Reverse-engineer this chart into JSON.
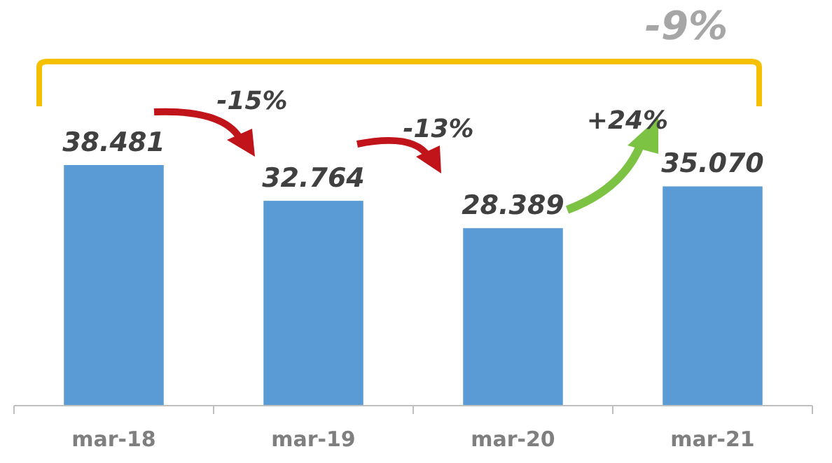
{
  "chart_data": {
    "type": "bar",
    "categories": [
      "mar-18",
      "mar-19",
      "mar-20",
      "mar-21"
    ],
    "values": [
      38.481,
      32.764,
      28.389,
      35.07
    ],
    "value_labels": [
      "38.481",
      "32.764",
      "28.389",
      "35.070"
    ],
    "color": "#5b9bd5",
    "tick_labels": "x",
    "annotations": [
      "-15%",
      "-13%",
      "+24%",
      "-9%"
    ]
  }
}
